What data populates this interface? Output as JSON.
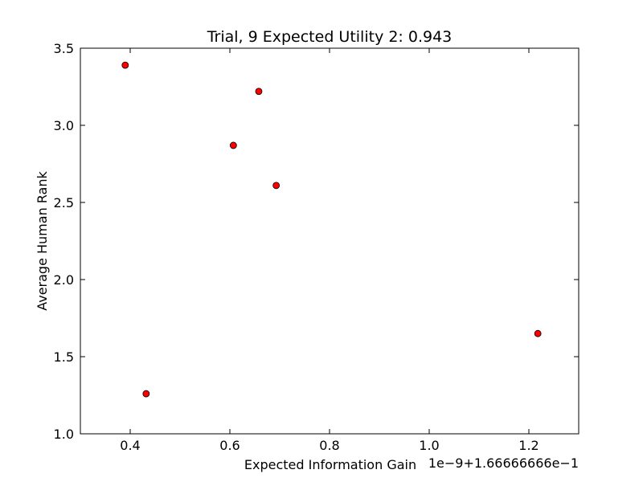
{
  "chart_data": {
    "type": "scatter",
    "title": "Trial, 9 Expected Utility 2: 0.943",
    "xlabel": "Expected Information Gain",
    "ylabel": "Average Human Rank",
    "x_offset_label": "1e−9+1.66666666e−1",
    "xlim": [
      0.3,
      1.3
    ],
    "ylim": [
      1.0,
      3.5
    ],
    "xticks": [
      0.4,
      0.6,
      0.8,
      1.0,
      1.2
    ],
    "xtick_labels": [
      "0.4",
      "0.6",
      "0.8",
      "1.0",
      "1.2"
    ],
    "yticks": [
      1.0,
      1.5,
      2.0,
      2.5,
      3.0,
      3.5
    ],
    "ytick_labels": [
      "1.0",
      "1.5",
      "2.0",
      "2.5",
      "3.0",
      "3.5"
    ],
    "grid": false,
    "marker_color": "#ff0000",
    "marker_edge_color": "#000000",
    "points": [
      {
        "x": 0.39,
        "y": 3.39
      },
      {
        "x": 0.658,
        "y": 3.22
      },
      {
        "x": 0.607,
        "y": 2.87
      },
      {
        "x": 0.693,
        "y": 2.61
      },
      {
        "x": 1.218,
        "y": 1.65
      },
      {
        "x": 0.432,
        "y": 1.26
      }
    ]
  }
}
